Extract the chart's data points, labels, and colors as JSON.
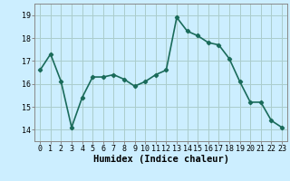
{
  "x": [
    0,
    1,
    2,
    3,
    4,
    5,
    6,
    7,
    8,
    9,
    10,
    11,
    12,
    13,
    14,
    15,
    16,
    17,
    18,
    19,
    20,
    21,
    22,
    23
  ],
  "y": [
    16.6,
    17.3,
    16.1,
    14.1,
    15.4,
    16.3,
    16.3,
    16.4,
    16.2,
    15.9,
    16.1,
    16.4,
    16.6,
    18.9,
    18.3,
    18.1,
    17.8,
    17.7,
    17.1,
    16.1,
    15.2,
    15.2,
    14.4,
    14.1
  ],
  "line_color": "#1a6b5a",
  "marker": "D",
  "marker_size": 2.2,
  "bg_color": "#cceeff",
  "grid_color": "#aacccc",
  "xlabel": "Humidex (Indice chaleur)",
  "ylim": [
    13.5,
    19.5
  ],
  "xlim": [
    -0.5,
    23.5
  ],
  "yticks": [
    14,
    15,
    16,
    17,
    18,
    19
  ],
  "xticks": [
    0,
    1,
    2,
    3,
    4,
    5,
    6,
    7,
    8,
    9,
    10,
    11,
    12,
    13,
    14,
    15,
    16,
    17,
    18,
    19,
    20,
    21,
    22,
    23
  ],
  "tick_fontsize": 6.0,
  "xlabel_fontsize": 7.5,
  "linewidth": 1.2
}
